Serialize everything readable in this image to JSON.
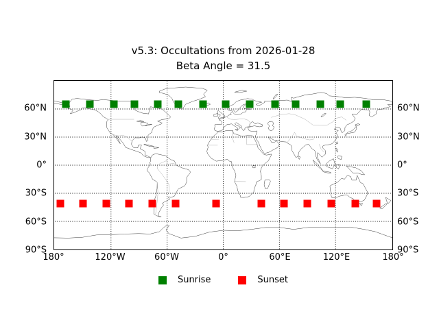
{
  "title": {
    "line1": "v5.3: Occultations from 2026-01-28",
    "line2": "Beta Angle = 31.5"
  },
  "axes": {
    "lat_ticks": [
      {
        "label": "60°N",
        "lat": 60
      },
      {
        "label": "30°N",
        "lat": 30
      },
      {
        "label": "0°",
        "lat": 0
      },
      {
        "label": "30°S",
        "lat": -30
      },
      {
        "label": "60°S",
        "lat": -60
      },
      {
        "label": "90°S",
        "lat": -90
      }
    ],
    "lon_ticks": [
      {
        "label": "180°",
        "lon": -180
      },
      {
        "label": "120°W",
        "lon": -120
      },
      {
        "label": "60°W",
        "lon": -60
      },
      {
        "label": "0°",
        "lon": 0
      },
      {
        "label": "60°E",
        "lon": 60
      },
      {
        "label": "120°E",
        "lon": 120
      },
      {
        "label": "180°",
        "lon": 180
      }
    ]
  },
  "grid": {
    "lat_lines": [
      60,
      30,
      0,
      -30,
      -60
    ],
    "lon_lines": [
      -120,
      -60,
      0,
      60,
      120
    ],
    "style": "dotted"
  },
  "legend": {
    "items": [
      {
        "label": "Sunrise",
        "color": "#008000"
      },
      {
        "label": "Sunset",
        "color": "#ff0000"
      }
    ]
  },
  "chart_data": {
    "type": "scatter",
    "title": "v5.3: Occultations from 2026-01-28",
    "subtitle": "Beta Angle = 31.5",
    "projection": "equirectangular world map",
    "xlim": [
      -180,
      180
    ],
    "ylim": [
      -90,
      90
    ],
    "grid": true,
    "legend_position": "bottom",
    "marker": "square",
    "series": [
      {
        "name": "Sunrise",
        "color": "#008000",
        "points": [
          {
            "lon": -167.5,
            "lat": 65
          },
          {
            "lon": -142,
            "lat": 65
          },
          {
            "lon": -117,
            "lat": 65
          },
          {
            "lon": -95,
            "lat": 65
          },
          {
            "lon": -70,
            "lat": 65
          },
          {
            "lon": -48.5,
            "lat": 65
          },
          {
            "lon": -22.5,
            "lat": 65
          },
          {
            "lon": 1.5,
            "lat": 65
          },
          {
            "lon": 27.5,
            "lat": 65
          },
          {
            "lon": 54.5,
            "lat": 65
          },
          {
            "lon": 76,
            "lat": 65
          },
          {
            "lon": 102,
            "lat": 65
          },
          {
            "lon": 123.5,
            "lat": 65
          },
          {
            "lon": 151,
            "lat": 65
          }
        ]
      },
      {
        "name": "Sunset",
        "color": "#ff0000",
        "points": [
          {
            "lon": -173.5,
            "lat": -40
          },
          {
            "lon": -149.5,
            "lat": -40
          },
          {
            "lon": -125,
            "lat": -40
          },
          {
            "lon": -100.5,
            "lat": -40
          },
          {
            "lon": -76,
            "lat": -40
          },
          {
            "lon": -51.5,
            "lat": -40
          },
          {
            "lon": -8.5,
            "lat": -40
          },
          {
            "lon": 39.5,
            "lat": -40
          },
          {
            "lon": 63.5,
            "lat": -40
          },
          {
            "lon": 88.5,
            "lat": -40
          },
          {
            "lon": 114,
            "lat": -40
          },
          {
            "lon": 139.5,
            "lat": -40
          },
          {
            "lon": 162,
            "lat": -40
          }
        ]
      }
    ]
  }
}
